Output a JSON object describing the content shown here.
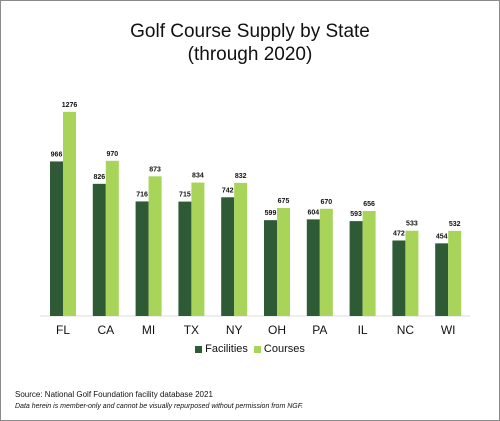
{
  "chart_data": {
    "type": "bar",
    "title": [
      "Golf Course Supply by State",
      "(through 2020)"
    ],
    "categories": [
      "FL",
      "CA",
      "MI",
      "TX",
      "NY",
      "OH",
      "PA",
      "IL",
      "NC",
      "WI"
    ],
    "series": [
      {
        "name": "Facilities",
        "color": "#2e5a36",
        "values": [
          966,
          826,
          716,
          715,
          742,
          599,
          604,
          593,
          472,
          454
        ]
      },
      {
        "name": "Courses",
        "color": "#a8d45a",
        "values": [
          1276,
          970,
          873,
          834,
          832,
          675,
          670,
          656,
          533,
          532
        ]
      }
    ],
    "ylim": [
      0,
      1300
    ],
    "grid": false,
    "legend_position": "bottom-center"
  },
  "footer": {
    "source": "Source: National Golf Foundation facility database 2021",
    "disclaimer": "Data herein is member-only and cannot be visually repurposed without permission from NGF."
  }
}
